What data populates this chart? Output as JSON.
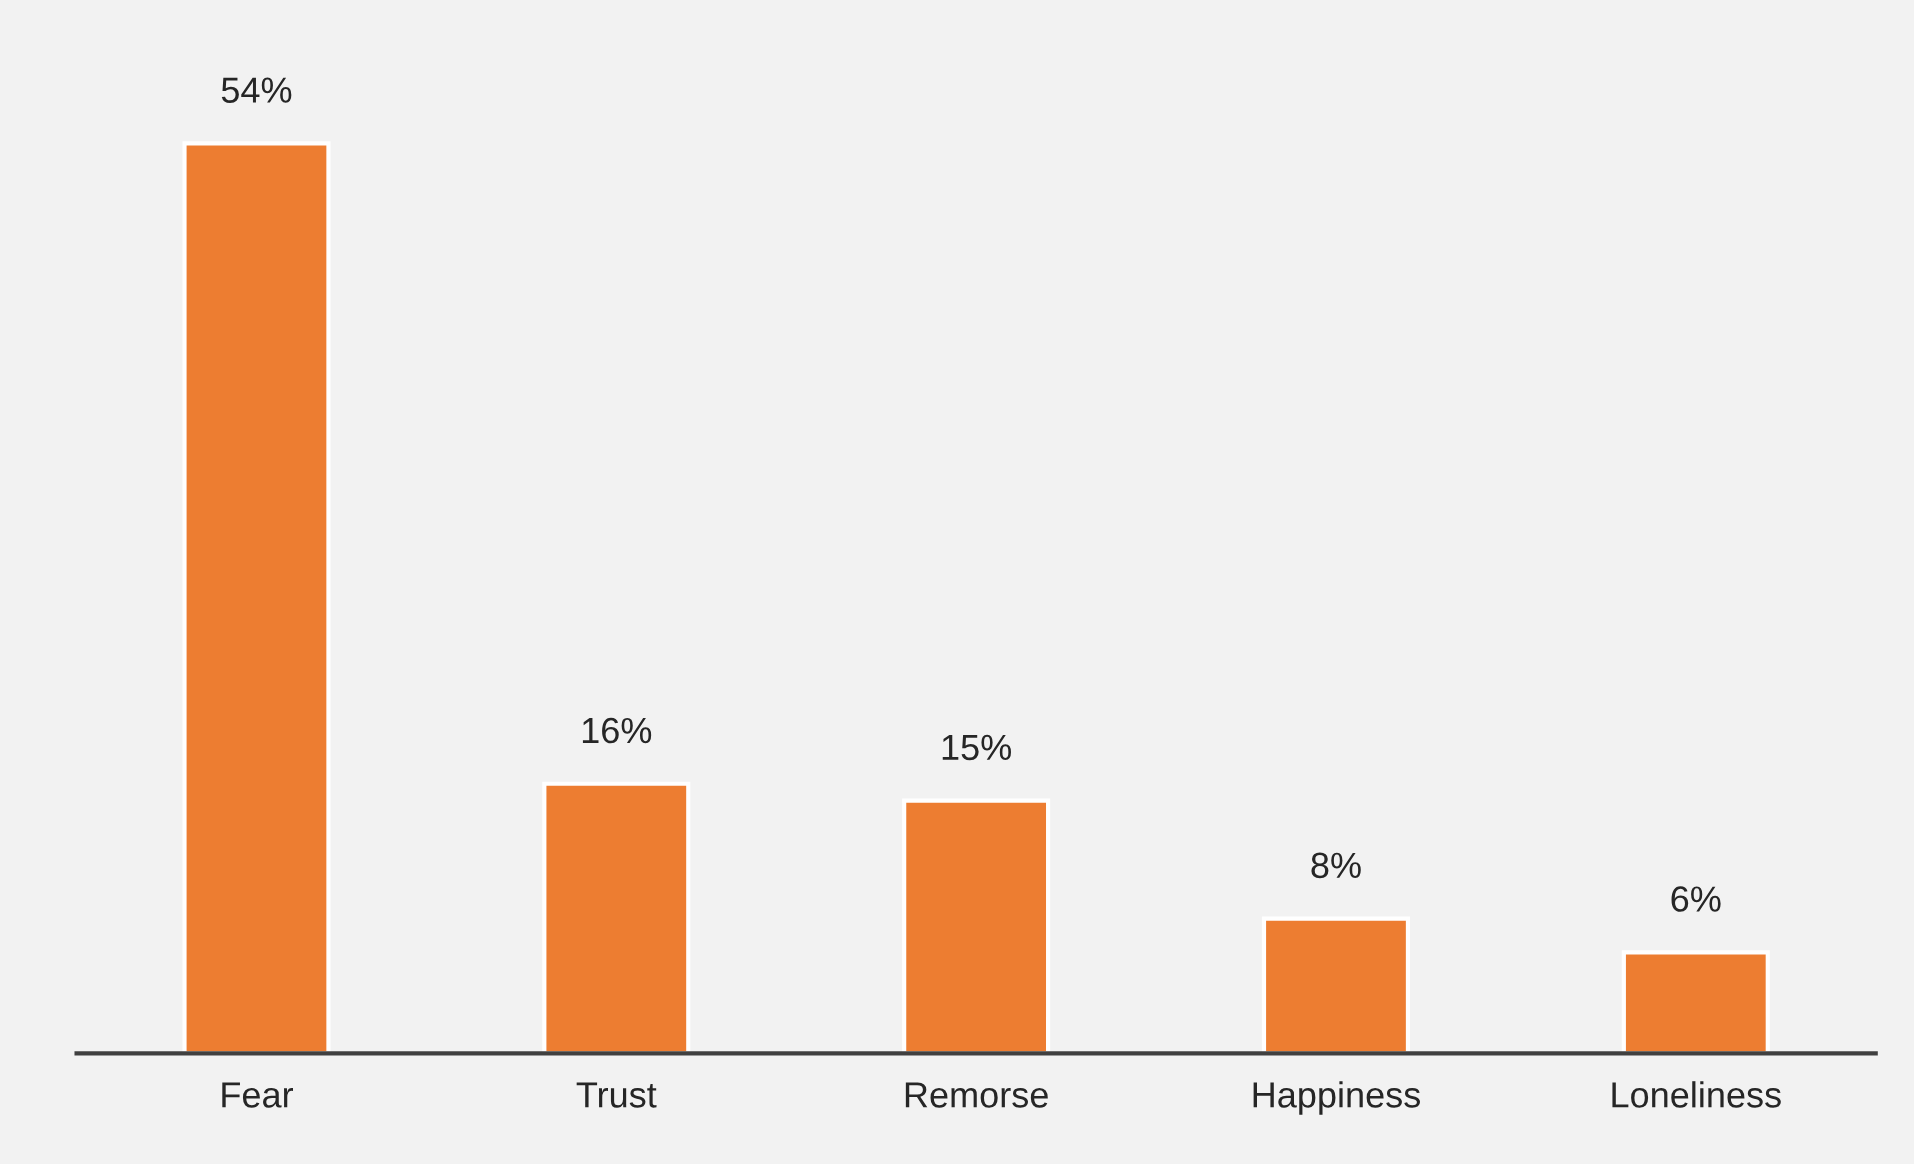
{
  "chart_data": {
    "type": "bar",
    "categories": [
      "Fear",
      "Trust",
      "Remorse",
      "Happiness",
      "Loneliness"
    ],
    "values": [
      54,
      16,
      15,
      8,
      6
    ],
    "value_labels": [
      "54%",
      "16%",
      "15%",
      "8%",
      "6%"
    ],
    "color": "#ed7d31"
  }
}
